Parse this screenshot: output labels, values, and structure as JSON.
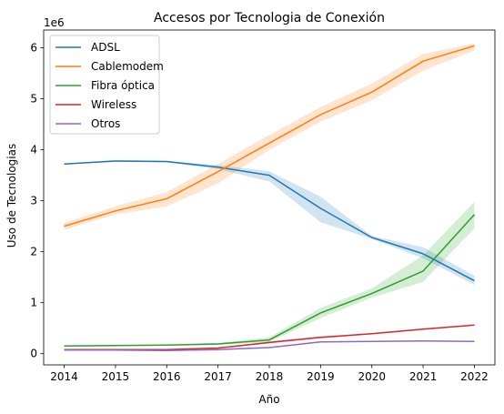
{
  "chart_data": {
    "type": "line",
    "title": "Accesos por Tecnologia de Conexión",
    "xlabel": "Año",
    "ylabel": "Uso de Tecnologias",
    "y_offset_label": "1e6",
    "x": [
      2014,
      2015,
      2016,
      2017,
      2018,
      2019,
      2020,
      2021,
      2022
    ],
    "xlim": [
      2013.6,
      2022.4
    ],
    "ylim": [
      -0.22,
      6.35
    ],
    "y_scale_factor": 1000000,
    "y_ticks": [
      0,
      1,
      2,
      3,
      4,
      5,
      6
    ],
    "grid": false,
    "legend_position": "upper left",
    "series": [
      {
        "name": "ADSL",
        "color": "#1f77b4",
        "values": [
          3.72,
          3.78,
          3.77,
          3.66,
          3.5,
          2.85,
          2.28,
          1.96,
          1.43
        ],
        "lower": [
          3.71,
          3.77,
          3.75,
          3.62,
          3.38,
          2.58,
          2.25,
          1.87,
          1.35
        ],
        "upper": [
          3.73,
          3.8,
          3.78,
          3.7,
          3.58,
          3.08,
          2.31,
          2.09,
          1.53
        ]
      },
      {
        "name": "Cablemodem",
        "color": "#ff7f0e",
        "values": [
          2.5,
          2.8,
          3.04,
          3.57,
          4.13,
          4.69,
          5.13,
          5.74,
          6.04
        ],
        "lower": [
          2.43,
          2.73,
          2.89,
          3.34,
          4.0,
          4.55,
          4.97,
          5.55,
          5.95
        ],
        "upper": [
          2.57,
          2.89,
          3.17,
          3.72,
          4.29,
          4.84,
          5.3,
          5.88,
          6.09
        ]
      },
      {
        "name": "Fibra óptica",
        "color": "#2ca02c",
        "values": [
          0.15,
          0.16,
          0.17,
          0.19,
          0.27,
          0.8,
          1.18,
          1.62,
          2.73
        ],
        "lower": [
          0.14,
          0.15,
          0.16,
          0.17,
          0.23,
          0.7,
          1.1,
          1.41,
          2.46
        ],
        "upper": [
          0.16,
          0.17,
          0.18,
          0.21,
          0.32,
          0.9,
          1.28,
          1.93,
          2.98
        ]
      },
      {
        "name": "Wireless",
        "color": "#d62728",
        "values": [
          0.08,
          0.08,
          0.08,
          0.11,
          0.22,
          0.32,
          0.39,
          0.48,
          0.56
        ],
        "lower": [
          0.07,
          0.07,
          0.07,
          0.1,
          0.2,
          0.3,
          0.38,
          0.47,
          0.55
        ],
        "upper": [
          0.09,
          0.09,
          0.09,
          0.12,
          0.24,
          0.34,
          0.4,
          0.49,
          0.57
        ]
      },
      {
        "name": "Otros",
        "color": "#9467bd",
        "values": [
          0.07,
          0.07,
          0.06,
          0.08,
          0.12,
          0.23,
          0.24,
          0.25,
          0.24
        ],
        "lower": [
          0.06,
          0.06,
          0.05,
          0.07,
          0.11,
          0.22,
          0.23,
          0.24,
          0.23
        ],
        "upper": [
          0.08,
          0.08,
          0.07,
          0.09,
          0.13,
          0.24,
          0.25,
          0.26,
          0.25
        ]
      }
    ]
  }
}
